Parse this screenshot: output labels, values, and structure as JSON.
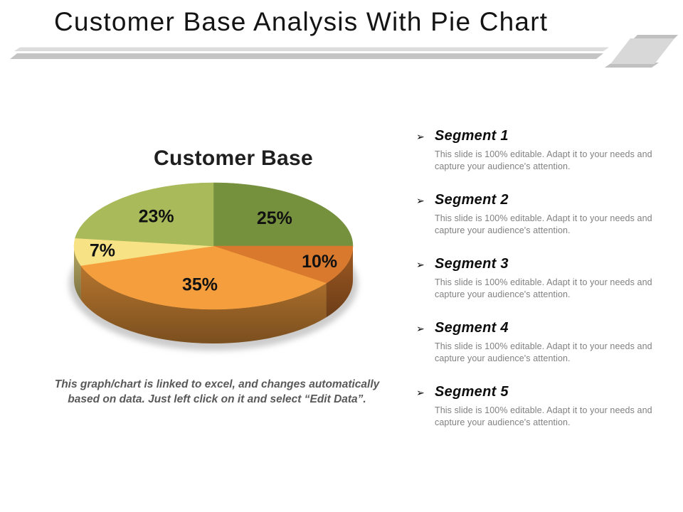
{
  "slide": {
    "title": "Customer Base Analysis With Pie Chart"
  },
  "chart_data": {
    "type": "pie",
    "title": "Customer Base",
    "labels": [
      "Segment 1",
      "Segment 2",
      "Segment 3",
      "Segment 4",
      "Segment 5"
    ],
    "values": [
      25,
      10,
      35,
      7,
      23
    ],
    "display_labels": [
      "25%",
      "10%",
      "35%",
      "7%",
      "23%"
    ],
    "colors": [
      "#76913E",
      "#D8792E",
      "#F59E3E",
      "#F7E385",
      "#A9BA5A"
    ],
    "start_angle_deg": 0,
    "direction": "clockwise",
    "effect": "3d",
    "legend_position": "none",
    "label_color": "#111111"
  },
  "segment_bullet": "➢",
  "segments": [
    "Segment 1",
    "Segment 2",
    "Segment 3",
    "Segment 4",
    "Segment 5"
  ],
  "segment_description": {
    "line1": "This slide is 100% editable. Adapt it to your needs and",
    "line2": "capture your audience's attention."
  },
  "caption": {
    "line1": "This graph/chart is linked to excel, and changes automatically",
    "line2": "based on data. Just left click on it and select “Edit Data”."
  },
  "decor": {
    "divider_light_color": "#dcdcdc",
    "divider_dark_color": "#c4c4c4",
    "corner_light_color": "#d8d8d8",
    "corner_dark_color": "#c0c0c0"
  }
}
